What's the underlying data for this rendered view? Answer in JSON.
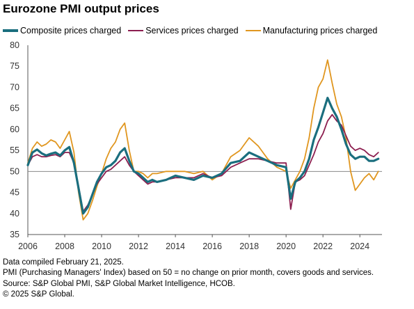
{
  "title": "Eurozone PMI output prices",
  "legend": [
    {
      "label": "Composite prices charged",
      "color": "#1a6e7e"
    },
    {
      "label": "Services prices charged",
      "color": "#8c1e4f"
    },
    {
      "label": "Manufacturing prices charged",
      "color": "#e0961f"
    }
  ],
  "notes": [
    "Data compiled February 21, 2025.",
    "PMI (Purchasing Managers' Index) based on 50 = no change on prior month, covers goods and services.",
    "Source: S&P Global PMI, S&P Global Market Intelligence, HCOB.",
    "© 2025 S&P Global."
  ],
  "chart_data": {
    "type": "line",
    "title": "Eurozone PMI output prices",
    "xlabel": "",
    "ylabel": "",
    "xlim": [
      2006.0,
      2025.2
    ],
    "ylim": [
      35,
      80
    ],
    "y_ticks": [
      35,
      40,
      45,
      50,
      55,
      60,
      65,
      70,
      75,
      80
    ],
    "x_ticks": [
      "2006",
      "2008",
      "2010",
      "2012",
      "2014",
      "2016",
      "2018",
      "2020",
      "2022",
      "2024"
    ],
    "reference_line": 50,
    "grid": false,
    "legend_position": "top",
    "x": [
      2006.0,
      2006.25,
      2006.5,
      2006.75,
      2007.0,
      2007.25,
      2007.5,
      2007.75,
      2008.0,
      2008.25,
      2008.5,
      2008.75,
      2009.0,
      2009.25,
      2009.5,
      2009.75,
      2010.0,
      2010.25,
      2010.5,
      2010.75,
      2011.0,
      2011.25,
      2011.5,
      2011.75,
      2012.0,
      2012.25,
      2012.5,
      2012.75,
      2013.0,
      2013.5,
      2014.0,
      2014.5,
      2015.0,
      2015.5,
      2016.0,
      2016.5,
      2017.0,
      2017.5,
      2018.0,
      2018.5,
      2019.0,
      2019.5,
      2020.0,
      2020.25,
      2020.5,
      2020.75,
      2021.0,
      2021.25,
      2021.5,
      2021.75,
      2022.0,
      2022.25,
      2022.5,
      2022.75,
      2023.0,
      2023.25,
      2023.5,
      2023.75,
      2024.0,
      2024.25,
      2024.5,
      2024.75,
      2025.0
    ],
    "series": [
      {
        "name": "Composite prices charged",
        "color": "#1a6e7e",
        "values": [
          51.5,
          54.5,
          55.2,
          54.3,
          53.8,
          54.2,
          54.5,
          53.8,
          55.0,
          55.8,
          52.0,
          46.0,
          40.0,
          41.5,
          44.5,
          47.5,
          49.5,
          51.0,
          51.5,
          52.5,
          54.5,
          55.5,
          52.5,
          50.0,
          49.5,
          48.5,
          47.5,
          48.0,
          47.5,
          48.0,
          49.0,
          48.5,
          48.0,
          49.0,
          48.5,
          49.5,
          52.0,
          52.5,
          54.5,
          53.5,
          52.5,
          51.5,
          51.0,
          43.5,
          47.5,
          48.5,
          50.0,
          53.0,
          57.5,
          60.5,
          64.0,
          67.5,
          65.0,
          63.0,
          60.0,
          56.5,
          54.0,
          53.0,
          53.5,
          53.5,
          52.5,
          52.5,
          53.0
        ]
      },
      {
        "name": "Services prices charged",
        "color": "#8c1e4f",
        "values": [
          51.5,
          53.5,
          54.0,
          53.5,
          53.5,
          53.8,
          54.0,
          53.5,
          54.5,
          54.5,
          52.0,
          46.5,
          40.5,
          42.0,
          44.5,
          47.0,
          48.5,
          50.0,
          50.5,
          51.5,
          52.5,
          53.5,
          51.5,
          50.0,
          49.0,
          48.0,
          47.0,
          47.5,
          47.5,
          48.0,
          48.5,
          48.5,
          48.5,
          49.5,
          48.5,
          49.0,
          51.0,
          52.0,
          53.0,
          53.0,
          52.5,
          52.0,
          52.0,
          41.0,
          47.5,
          48.0,
          49.0,
          51.5,
          54.0,
          57.0,
          59.0,
          62.0,
          63.5,
          62.0,
          61.0,
          58.5,
          56.0,
          55.0,
          55.5,
          55.0,
          54.0,
          53.5,
          54.5
        ]
      },
      {
        "name": "Manufacturing prices charged",
        "color": "#e0961f",
        "values": [
          52.0,
          55.5,
          57.0,
          56.0,
          56.5,
          57.5,
          57.0,
          55.5,
          57.5,
          59.5,
          54.5,
          45.0,
          38.5,
          40.0,
          43.0,
          46.5,
          49.5,
          53.0,
          55.5,
          57.0,
          60.0,
          61.5,
          55.0,
          50.0,
          50.0,
          49.5,
          48.5,
          49.5,
          49.5,
          50.0,
          50.0,
          50.0,
          49.5,
          50.0,
          48.0,
          49.5,
          53.5,
          55.0,
          58.0,
          56.0,
          53.0,
          51.0,
          50.0,
          46.0,
          48.0,
          50.0,
          53.0,
          58.0,
          65.0,
          70.0,
          72.0,
          76.5,
          71.0,
          66.0,
          63.0,
          58.0,
          50.0,
          45.5,
          47.0,
          48.5,
          49.5,
          48.0,
          50.0
        ]
      }
    ]
  }
}
